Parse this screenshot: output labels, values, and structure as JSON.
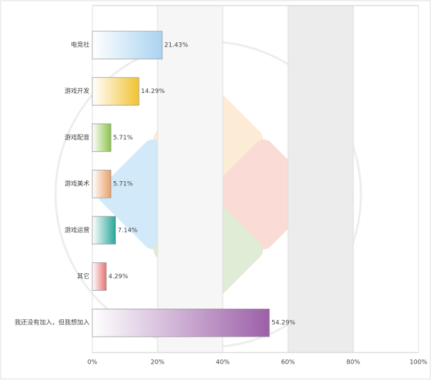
{
  "chart_data": {
    "type": "bar",
    "orientation": "horizontal",
    "categories": [
      "电竞社",
      "游戏开发",
      "游戏配音",
      "游戏美术",
      "游戏运营",
      "其它",
      "我还没有加入，但我想加入"
    ],
    "values": [
      21.43,
      14.29,
      5.71,
      5.71,
      7.14,
      4.29,
      54.29
    ],
    "value_labels": [
      "21.43%",
      "14.29%",
      "5.71%",
      "5.71%",
      "7.14%",
      "4.29%",
      "54.29%"
    ],
    "colors": [
      "#a9d3f0",
      "#f1c232",
      "#8bc34a",
      "#e8a06a",
      "#2aa59a",
      "#e57373",
      "#9c5fa8"
    ],
    "xlim": [
      0,
      100
    ],
    "xticks": [
      {
        "value": 0,
        "label": "0%"
      },
      {
        "value": 20,
        "label": "20%"
      },
      {
        "value": 40,
        "label": "40%"
      },
      {
        "value": 60,
        "label": "60%"
      },
      {
        "value": 80,
        "label": "80%"
      },
      {
        "value": 100,
        "label": "100%"
      }
    ],
    "grid": true
  }
}
